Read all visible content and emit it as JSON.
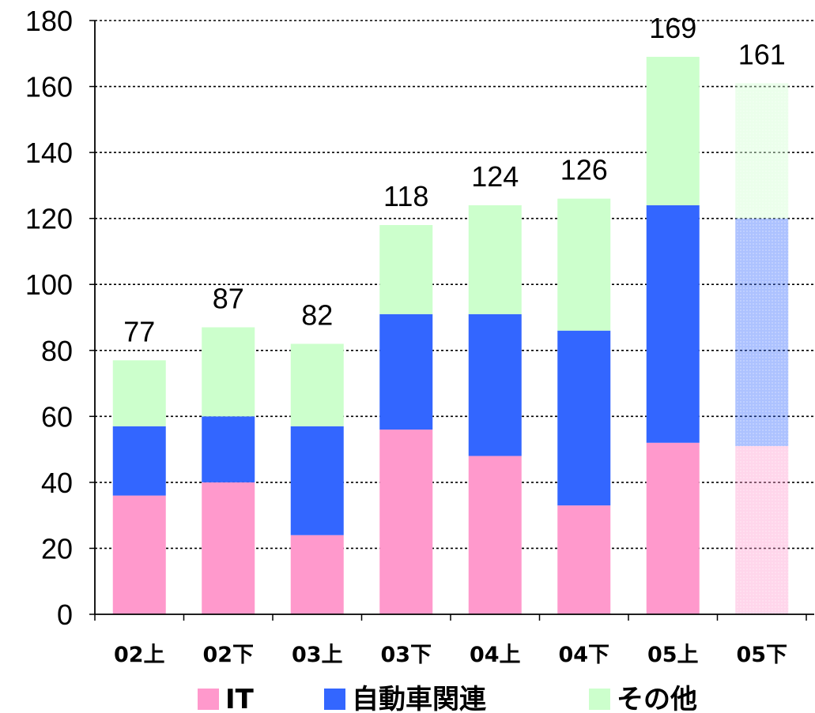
{
  "chart_data": {
    "type": "bar",
    "stacked": true,
    "categories": [
      "02上",
      "02下",
      "03上",
      "03下",
      "04上",
      "04下",
      "05上",
      "05下"
    ],
    "series": [
      {
        "name": "IT",
        "color": "#ff99cc",
        "values": [
          36,
          40,
          24,
          56,
          48,
          33,
          52,
          51
        ]
      },
      {
        "name": "自動車関連",
        "color": "#3366ff",
        "values": [
          21,
          20,
          33,
          35,
          43,
          53,
          72,
          69
        ]
      },
      {
        "name": "その他",
        "color": "#ccffcc",
        "values": [
          20,
          27,
          25,
          27,
          33,
          40,
          45,
          41
        ]
      }
    ],
    "totals": [
      "77",
      "87",
      "82",
      "118",
      "124",
      "126",
      "169",
      "161"
    ],
    "forecast_categories": [
      "05下"
    ],
    "ylim": [
      0,
      180
    ],
    "yticks": [
      "0",
      "20",
      "40",
      "60",
      "80",
      "100",
      "120",
      "140",
      "160",
      "180"
    ],
    "grid": "horizontal dotted",
    "legend_position": "bottom",
    "title": "",
    "xlabel": "",
    "ylabel": ""
  }
}
